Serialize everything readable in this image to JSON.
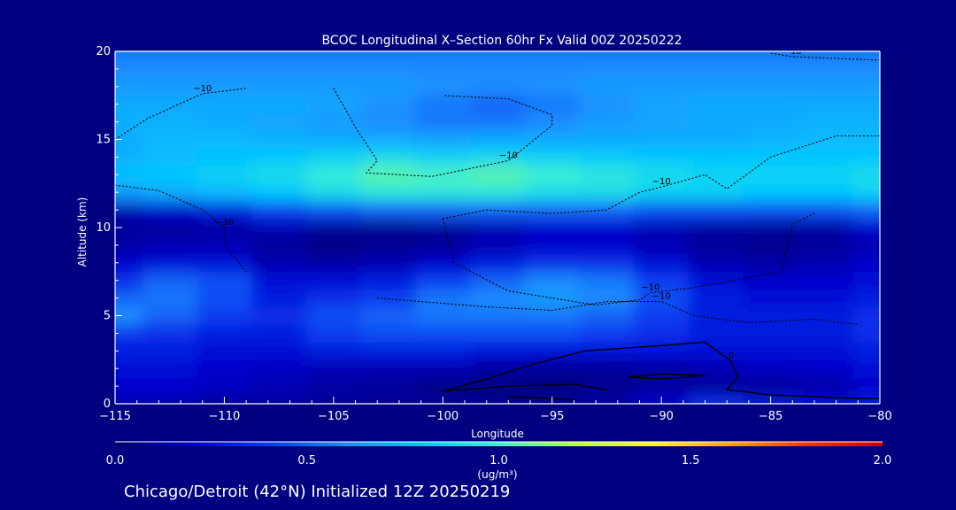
{
  "chart_data": {
    "type": "heatmap",
    "title": "BCOC Longitudinal X–Section 60hr  Fx Valid 00Z 20250222",
    "subtitle": "Chicago/Detroit (42°N) Initialized 12Z 20250219",
    "xlabel": "Longitude",
    "ylabel": "Altitude (km)",
    "xlim": [
      -115,
      -80
    ],
    "ylim": [
      0,
      20
    ],
    "x_ticks": [
      -115,
      -110,
      -105,
      -100,
      -95,
      -90,
      -85,
      -80
    ],
    "x_tick_labels": [
      "−115",
      "−110",
      "−105",
      "−100",
      "−95",
      "−90",
      "−85",
      "−80"
    ],
    "y_ticks": [
      0,
      5,
      10,
      15,
      20
    ],
    "y_tick_labels": [
      "0",
      "5",
      "10",
      "15",
      "20"
    ],
    "colorbar": {
      "label": "(ug/m³)",
      "range": [
        0,
        2
      ],
      "ticks": [
        0,
        0.5,
        1,
        1.5,
        2
      ],
      "tick_labels": [
        "0.0",
        "0.5",
        "1.0",
        "1.5",
        "2.0"
      ],
      "colors": [
        "#000066",
        "#0000cc",
        "#0a3cf0",
        "#1e8cff",
        "#00c8ff",
        "#3cf0d2",
        "#b4ff3c",
        "#ffff00",
        "#ffa000",
        "#ff3200",
        "#c80000"
      ]
    },
    "x": [
      -115,
      -112.5,
      -110,
      -107.5,
      -105,
      -102.5,
      -100,
      -97.5,
      -95,
      -92.5,
      -90,
      -87.5,
      -85,
      -82.5,
      -80
    ],
    "y": [
      0,
      1,
      2,
      3,
      4,
      5,
      6,
      7,
      8,
      9,
      10,
      11,
      12,
      13,
      14,
      15,
      16,
      17,
      18,
      19,
      20
    ],
    "z": [
      [
        0.15,
        0.15,
        0.12,
        0.12,
        0.1,
        0.1,
        0.1,
        0.1,
        0.1,
        0.12,
        0.2,
        0.35,
        0.3,
        0.25,
        0.3
      ],
      [
        0.2,
        0.2,
        0.18,
        0.15,
        0.12,
        0.1,
        0.06,
        0.05,
        0.05,
        0.08,
        0.1,
        0.1,
        0.1,
        0.12,
        0.2
      ],
      [
        0.25,
        0.25,
        0.2,
        0.18,
        0.15,
        0.15,
        0.15,
        0.12,
        0.1,
        0.1,
        0.12,
        0.15,
        0.18,
        0.2,
        0.25
      ],
      [
        0.3,
        0.3,
        0.25,
        0.25,
        0.3,
        0.3,
        0.3,
        0.25,
        0.25,
        0.25,
        0.25,
        0.25,
        0.25,
        0.25,
        0.3
      ],
      [
        0.38,
        0.35,
        0.3,
        0.3,
        0.4,
        0.45,
        0.45,
        0.45,
        0.45,
        0.4,
        0.35,
        0.3,
        0.3,
        0.3,
        0.35
      ],
      [
        0.62,
        0.5,
        0.4,
        0.35,
        0.45,
        0.5,
        0.55,
        0.55,
        0.55,
        0.5,
        0.4,
        0.3,
        0.3,
        0.3,
        0.35
      ],
      [
        0.5,
        0.55,
        0.45,
        0.3,
        0.35,
        0.4,
        0.55,
        0.6,
        0.65,
        0.6,
        0.45,
        0.3,
        0.25,
        0.25,
        0.3
      ],
      [
        0.35,
        0.5,
        0.45,
        0.25,
        0.25,
        0.3,
        0.4,
        0.5,
        0.6,
        0.55,
        0.4,
        0.25,
        0.2,
        0.2,
        0.25
      ],
      [
        0.2,
        0.25,
        0.25,
        0.15,
        0.12,
        0.15,
        0.2,
        0.3,
        0.35,
        0.35,
        0.25,
        0.15,
        0.12,
        0.15,
        0.2
      ],
      [
        0.12,
        0.15,
        0.15,
        0.1,
        0.06,
        0.08,
        0.1,
        0.15,
        0.2,
        0.2,
        0.15,
        0.1,
        0.08,
        0.1,
        0.15
      ],
      [
        0.1,
        0.1,
        0.12,
        0.15,
        0.1,
        0.08,
        0.1,
        0.15,
        0.2,
        0.2,
        0.15,
        0.12,
        0.1,
        0.12,
        0.2
      ],
      [
        0.15,
        0.2,
        0.3,
        0.4,
        0.45,
        0.5,
        0.5,
        0.5,
        0.5,
        0.5,
        0.45,
        0.45,
        0.45,
        0.45,
        0.5
      ],
      [
        0.65,
        0.7,
        0.75,
        0.8,
        0.9,
        0.95,
        0.95,
        0.95,
        0.9,
        0.9,
        0.85,
        0.85,
        0.8,
        0.8,
        0.85
      ],
      [
        0.78,
        0.8,
        0.85,
        0.9,
        0.98,
        1.05,
        1.02,
        1.05,
        1.0,
        0.95,
        0.9,
        0.85,
        0.85,
        0.85,
        0.9
      ],
      [
        0.72,
        0.75,
        0.78,
        0.8,
        0.85,
        0.9,
        0.85,
        0.88,
        0.85,
        0.82,
        0.8,
        0.8,
        0.8,
        0.8,
        0.8
      ],
      [
        0.7,
        0.75,
        0.75,
        0.72,
        0.7,
        0.7,
        0.68,
        0.7,
        0.7,
        0.7,
        0.7,
        0.7,
        0.72,
        0.75,
        0.75
      ],
      [
        0.72,
        0.72,
        0.7,
        0.68,
        0.65,
        0.6,
        0.55,
        0.55,
        0.6,
        0.65,
        0.68,
        0.7,
        0.7,
        0.72,
        0.72
      ],
      [
        0.7,
        0.7,
        0.7,
        0.7,
        0.68,
        0.62,
        0.55,
        0.5,
        0.55,
        0.62,
        0.68,
        0.7,
        0.7,
        0.7,
        0.7
      ],
      [
        0.65,
        0.65,
        0.65,
        0.65,
        0.65,
        0.65,
        0.62,
        0.6,
        0.62,
        0.65,
        0.65,
        0.65,
        0.65,
        0.65,
        0.65
      ],
      [
        0.6,
        0.6,
        0.6,
        0.6,
        0.6,
        0.6,
        0.6,
        0.6,
        0.6,
        0.6,
        0.6,
        0.6,
        0.6,
        0.6,
        0.6
      ],
      [
        0.55,
        0.55,
        0.55,
        0.55,
        0.55,
        0.55,
        0.55,
        0.55,
        0.55,
        0.55,
        0.55,
        0.55,
        0.55,
        0.55,
        0.55
      ]
    ],
    "contours": [
      {
        "style": "dotted",
        "label": "−10",
        "points": [
          [
            -115,
            15.0
          ],
          [
            -113.5,
            16.2
          ],
          [
            -111,
            17.6
          ],
          [
            -109,
            17.9
          ]
        ]
      },
      {
        "style": "dotted",
        "label": "−10",
        "points": [
          [
            -105,
            17.9
          ],
          [
            -104,
            15.7
          ],
          [
            -103,
            13.8
          ],
          [
            -103.5,
            13.1
          ],
          [
            -100.5,
            12.9
          ],
          [
            -97,
            13.8
          ],
          [
            -95,
            15.8
          ],
          [
            -95,
            16.4
          ],
          [
            -97,
            17.3
          ],
          [
            -100,
            17.5
          ]
        ]
      },
      {
        "style": "dotted",
        "label": "−10",
        "points": [
          [
            -100,
            10.5
          ],
          [
            -98,
            11.0
          ],
          [
            -95,
            10.8
          ],
          [
            -92.5,
            11.0
          ],
          [
            -91,
            12.0
          ],
          [
            -90,
            12.3
          ],
          [
            -88,
            13.0
          ],
          [
            -87,
            12.2
          ],
          [
            -85,
            14.0
          ],
          [
            -82,
            15.2
          ],
          [
            -80,
            15.2
          ]
        ]
      },
      {
        "style": "dotted",
        "label": "−30",
        "points": [
          [
            -115,
            12.4
          ],
          [
            -113,
            12.1
          ],
          [
            -111,
            11.0
          ],
          [
            -110,
            10.0
          ],
          [
            -110,
            9.0
          ],
          [
            -109,
            7.5
          ]
        ]
      },
      {
        "style": "dotted",
        "label": "−10",
        "points": [
          [
            -100,
            10.5
          ],
          [
            -99.5,
            8.0
          ],
          [
            -97,
            6.4
          ],
          [
            -93,
            5.6
          ],
          [
            -91,
            5.9
          ],
          [
            -90.5,
            6.3
          ],
          [
            -88.5,
            6.6
          ],
          [
            -84.5,
            7.5
          ],
          [
            -84,
            10.2
          ],
          [
            -83,
            10.8
          ]
        ]
      },
      {
        "style": "dotted",
        "label": "−10",
        "points": [
          [
            -103,
            6.0
          ],
          [
            -98,
            5.5
          ],
          [
            -95,
            5.3
          ],
          [
            -92.5,
            5.8
          ],
          [
            -90,
            5.8
          ],
          [
            -88.5,
            5.0
          ],
          [
            -86,
            4.6
          ],
          [
            -83,
            4.8
          ],
          [
            -81,
            4.5
          ]
        ]
      },
      {
        "style": "dotted",
        "label": "−10",
        "points": [
          [
            -80,
            19.5
          ],
          [
            -82,
            19.6
          ],
          [
            -84,
            19.7
          ],
          [
            -85,
            19.9
          ]
        ]
      },
      {
        "style": "solid",
        "label": "0",
        "points": [
          [
            -100,
            0.7
          ],
          [
            -98,
            1.4
          ],
          [
            -96,
            2.2
          ],
          [
            -93.5,
            3.0
          ],
          [
            -90,
            3.3
          ],
          [
            -88,
            3.5
          ],
          [
            -86.8,
            2.4
          ],
          [
            -86.5,
            1.5
          ],
          [
            -87,
            0.8
          ],
          [
            -85,
            0.5
          ],
          [
            -83,
            0.4
          ],
          [
            -81,
            0.3
          ],
          [
            -80,
            0.3
          ]
        ]
      },
      {
        "style": "solid",
        "label": "",
        "points": [
          [
            -100,
            0.7
          ],
          [
            -97,
            1.0
          ],
          [
            -94,
            1.1
          ],
          [
            -92.5,
            0.8
          ]
        ]
      },
      {
        "style": "solid",
        "label": "",
        "points": [
          [
            -90,
            1.7
          ],
          [
            -88,
            1.6
          ],
          [
            -90,
            1.4
          ],
          [
            -91.5,
            1.5
          ],
          [
            -90,
            1.7
          ]
        ]
      },
      {
        "style": "solid",
        "label": "",
        "points": [
          [
            -97,
            0.4
          ],
          [
            -95,
            0.3
          ],
          [
            -94,
            0.2
          ]
        ]
      }
    ]
  }
}
